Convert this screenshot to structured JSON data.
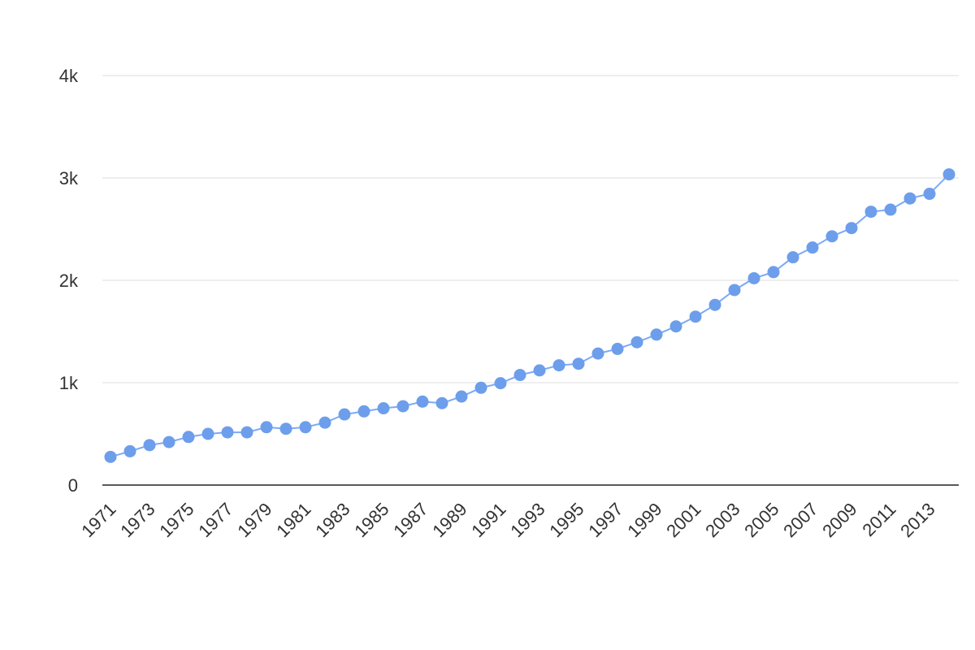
{
  "chart_data": {
    "type": "line",
    "title": "",
    "xlabel": "",
    "ylabel": "",
    "x": [
      1971,
      1972,
      1973,
      1974,
      1975,
      1976,
      1977,
      1978,
      1979,
      1980,
      1981,
      1982,
      1983,
      1984,
      1985,
      1986,
      1987,
      1988,
      1989,
      1990,
      1991,
      1992,
      1993,
      1994,
      1995,
      1996,
      1997,
      1998,
      1999,
      2000,
      2001,
      2002,
      2003,
      2004,
      2005,
      2006,
      2007,
      2008,
      2009,
      2010,
      2011,
      2012,
      2013,
      2014
    ],
    "x_tick_labels": [
      "1971",
      "1973",
      "1975",
      "1977",
      "1979",
      "1981",
      "1983",
      "1985",
      "1987",
      "1989",
      "1991",
      "1993",
      "1995",
      "1997",
      "1999",
      "2001",
      "2003",
      "2005",
      "2007",
      "2009",
      "2011",
      "2013"
    ],
    "series": [
      {
        "values": [
          275,
          330,
          390,
          420,
          470,
          500,
          515,
          515,
          565,
          550,
          565,
          610,
          690,
          720,
          750,
          770,
          815,
          800,
          865,
          950,
          995,
          1075,
          1120,
          1170,
          1185,
          1285,
          1330,
          1395,
          1470,
          1550,
          1645,
          1760,
          1905,
          2020,
          2080,
          2225,
          2320,
          2430,
          2510,
          2670,
          2690,
          2800,
          2845,
          3035
        ]
      }
    ],
    "ylim": [
      0,
      4000
    ],
    "y_ticks": [
      {
        "value": 0,
        "label": "0"
      },
      {
        "value": 1000,
        "label": "1k"
      },
      {
        "value": 2000,
        "label": "2k"
      },
      {
        "value": 3000,
        "label": "3k"
      },
      {
        "value": 4000,
        "label": "4k"
      }
    ],
    "grid": true,
    "legend": "none",
    "colors": {
      "line": "#7baaf7",
      "marker": "#6d9eeb",
      "grid": "#dddddd",
      "axis": "#222222"
    }
  }
}
